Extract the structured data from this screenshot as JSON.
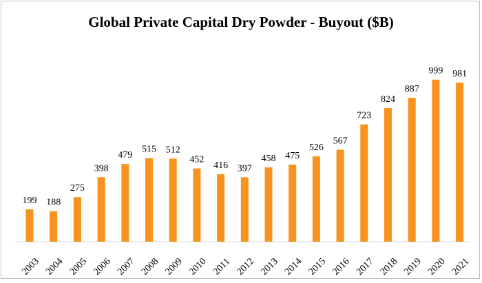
{
  "chart_data": {
    "type": "bar",
    "title": "Global Private Capital Dry Powder - Buyout ($B)",
    "xlabel": "",
    "ylabel": "",
    "ylim": [
      0,
      1050
    ],
    "grid": false,
    "legend": "none",
    "bar_color": "#F7931E",
    "categories": [
      "2003",
      "2004",
      "2005",
      "2006",
      "2007",
      "2008",
      "2009",
      "2010",
      "2011",
      "2012",
      "2013",
      "2014",
      "2015",
      "2016",
      "2017",
      "2018",
      "2019",
      "2020",
      "2021"
    ],
    "values": [
      199,
      188,
      275,
      398,
      479,
      515,
      512,
      452,
      416,
      397,
      458,
      475,
      526,
      567,
      723,
      824,
      887,
      999,
      981
    ]
  }
}
